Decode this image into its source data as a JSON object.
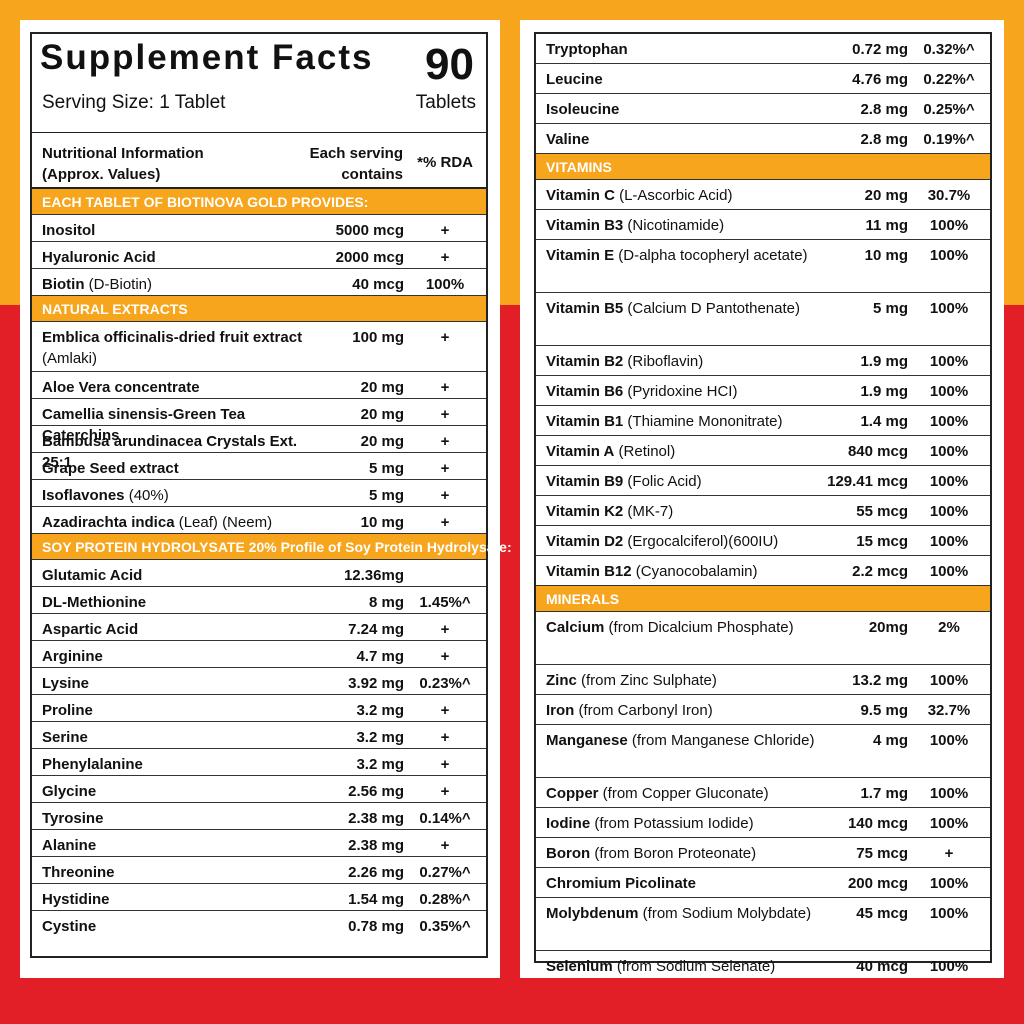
{
  "header": {
    "title": "Supplement Facts",
    "serving_size": "Serving Size: 1 Tablet",
    "count": "90",
    "count_unit": "Tablets"
  },
  "columns": {
    "info_line1": "Nutritional Information",
    "info_line2": "(Approx. Values)",
    "serving_line1": "Each serving",
    "serving_line2": "contains",
    "rda": "*% RDA"
  },
  "colors": {
    "orange": "#f7a51c",
    "red": "#e21f26"
  },
  "left_sections": [
    {
      "title": "EACH TABLET OF BIOTINOVA GOLD PROVIDES:",
      "rows": [
        {
          "name": "Inositol",
          "detail": "",
          "amount": "5000 mcg",
          "rda": "+"
        },
        {
          "name": "Hyaluronic Acid",
          "detail": "",
          "amount": "2000 mcg",
          "rda": "+"
        },
        {
          "name": "Biotin",
          "detail": " (D-Biotin)",
          "amount": "40 mcg",
          "rda": "100%"
        }
      ]
    },
    {
      "title": "NATURAL EXTRACTS",
      "rows": [
        {
          "name": "Emblica officinalis-dried fruit extract",
          "detail": " (Amlaki)",
          "amount": "100 mg",
          "rda": "+",
          "tall": true
        },
        {
          "name": "Aloe Vera concentrate",
          "detail": "",
          "amount": "20 mg",
          "rda": "+"
        },
        {
          "name": "Camellia sinensis-Green Tea Caterchins",
          "detail": "",
          "amount": "20 mg",
          "rda": "+"
        },
        {
          "name": "Bambusa arundinacea Crystals Ext. 25:1",
          "detail": "",
          "amount": "20 mg",
          "rda": "+"
        },
        {
          "name": "Grape Seed extract",
          "detail": "",
          "amount": "5 mg",
          "rda": "+"
        },
        {
          "name": "Isoflavones",
          "detail": " (40%)",
          "amount": "5 mg",
          "rda": "+"
        },
        {
          "name": "Azadirachta indica",
          "detail": " (Leaf) (Neem)",
          "amount": "10 mg",
          "rda": "+"
        }
      ]
    },
    {
      "title": "SOY PROTEIN HYDROLYSATE 20% Profile of Soy Protein Hydrolysate:",
      "rows": [
        {
          "name": "Glutamic Acid",
          "detail": "",
          "amount": "12.36mg",
          "rda": ""
        },
        {
          "name": "DL-Methionine",
          "detail": "",
          "amount": "8 mg",
          "rda": "1.45%^"
        },
        {
          "name": "Aspartic Acid",
          "detail": "",
          "amount": "7.24 mg",
          "rda": "+"
        },
        {
          "name": "Arginine",
          "detail": "",
          "amount": "4.7 mg",
          "rda": "+"
        },
        {
          "name": "Lysine",
          "detail": "",
          "amount": "3.92 mg",
          "rda": "0.23%^"
        },
        {
          "name": "Proline",
          "detail": "",
          "amount": "3.2 mg",
          "rda": "+"
        },
        {
          "name": "Serine",
          "detail": "",
          "amount": "3.2 mg",
          "rda": "+"
        },
        {
          "name": "Phenylalanine",
          "detail": "",
          "amount": "3.2 mg",
          "rda": "+"
        },
        {
          "name": "Glycine",
          "detail": "",
          "amount": "2.56 mg",
          "rda": "+"
        },
        {
          "name": "Tyrosine",
          "detail": "",
          "amount": "2.38 mg",
          "rda": "0.14%^"
        },
        {
          "name": "Alanine",
          "detail": "",
          "amount": "2.38 mg",
          "rda": "+"
        },
        {
          "name": "Threonine",
          "detail": "",
          "amount": "2.26 mg",
          "rda": "0.27%^"
        },
        {
          "name": "Hystidine",
          "detail": "",
          "amount": "1.54 mg",
          "rda": "0.28%^"
        },
        {
          "name": "Cystine",
          "detail": "",
          "amount": "0.78 mg",
          "rda": "0.35%^"
        }
      ]
    }
  ],
  "right_sections": [
    {
      "title": "",
      "rows": [
        {
          "name": "Tryptophan",
          "detail": "",
          "amount": "0.72 mg",
          "rda": "0.32%^"
        },
        {
          "name": "Leucine",
          "detail": "",
          "amount": "4.76 mg",
          "rda": "0.22%^"
        },
        {
          "name": "Isoleucine",
          "detail": "",
          "amount": "2.8 mg",
          "rda": "0.25%^"
        },
        {
          "name": "Valine",
          "detail": "",
          "amount": "2.8 mg",
          "rda": "0.19%^"
        }
      ]
    },
    {
      "title": "VITAMINS",
      "rows": [
        {
          "name": "Vitamin C",
          "detail": " (L-Ascorbic Acid)",
          "amount": "20 mg",
          "rda": "30.7%"
        },
        {
          "name": "Vitamin B3",
          "detail": " (Nicotinamide)",
          "amount": "11 mg",
          "rda": "100%"
        },
        {
          "name": "Vitamin E",
          "detail": " (D-alpha tocopheryl acetate)",
          "amount": "10 mg",
          "rda": "100%",
          "tall": true
        },
        {
          "name": "Vitamin B5",
          "detail": " (Calcium D Pantothenate)",
          "amount": "5 mg",
          "rda": "100%",
          "tall": true
        },
        {
          "name": "Vitamin B2",
          "detail": " (Riboflavin)",
          "amount": "1.9 mg",
          "rda": "100%"
        },
        {
          "name": "Vitamin B6",
          "detail": " (Pyridoxine HCI)",
          "amount": "1.9 mg",
          "rda": "100%"
        },
        {
          "name": "Vitamin B1",
          "detail": " (Thiamine Mononitrate)",
          "amount": "1.4 mg",
          "rda": "100%"
        },
        {
          "name": "Vitamin A",
          "detail": " (Retinol)",
          "amount": "840 mcg",
          "rda": "100%"
        },
        {
          "name": "Vitamin B9",
          "detail": " (Folic Acid)",
          "amount": "129.41 mcg",
          "rda": "100%"
        },
        {
          "name": "Vitamin K2",
          "detail": " (MK-7)",
          "amount": "55 mcg",
          "rda": "100%"
        },
        {
          "name": "Vitamin D2",
          "detail": " (Ergocalciferol)(600IU)",
          "amount": "15 mcg",
          "rda": "100%"
        },
        {
          "name": "Vitamin B12",
          "detail": " (Cyanocobalamin)",
          "amount": "2.2 mcg",
          "rda": "100%"
        }
      ]
    },
    {
      "title": "MINERALS",
      "rows": [
        {
          "name": "Calcium",
          "detail": " (from Dicalcium Phosphate)",
          "amount": "20mg",
          "rda": "2%",
          "tall": true
        },
        {
          "name": "Zinc",
          "detail": " (from Zinc Sulphate)",
          "amount": "13.2 mg",
          "rda": "100%"
        },
        {
          "name": "Iron",
          "detail": " (from Carbonyl Iron)",
          "amount": "9.5 mg",
          "rda": "32.7%"
        },
        {
          "name": "Manganese",
          "detail": " (from Manganese Chloride)",
          "amount": "4 mg",
          "rda": "100%",
          "tall": true
        },
        {
          "name": "Copper",
          "detail": " (from Copper Gluconate)",
          "amount": "1.7 mg",
          "rda": "100%"
        },
        {
          "name": "Iodine",
          "detail": " (from Potassium Iodide)",
          "amount": "140 mcg",
          "rda": "100%"
        },
        {
          "name": "Boron",
          "detail": " (from Boron Proteonate)",
          "amount": "75 mcg",
          "rda": "+"
        },
        {
          "name": "Chromium Picolinate",
          "detail": "",
          "amount": "200 mcg",
          "rda": "100%"
        },
        {
          "name": "Molybdenum",
          "detail": " (from Sodium Molybdate)",
          "amount": "45 mcg",
          "rda": "100%",
          "tall": true
        },
        {
          "name": "Selenium",
          "detail": " (from Sodium Selenate)",
          "amount": "40 mcg",
          "rda": "100%"
        }
      ]
    }
  ]
}
